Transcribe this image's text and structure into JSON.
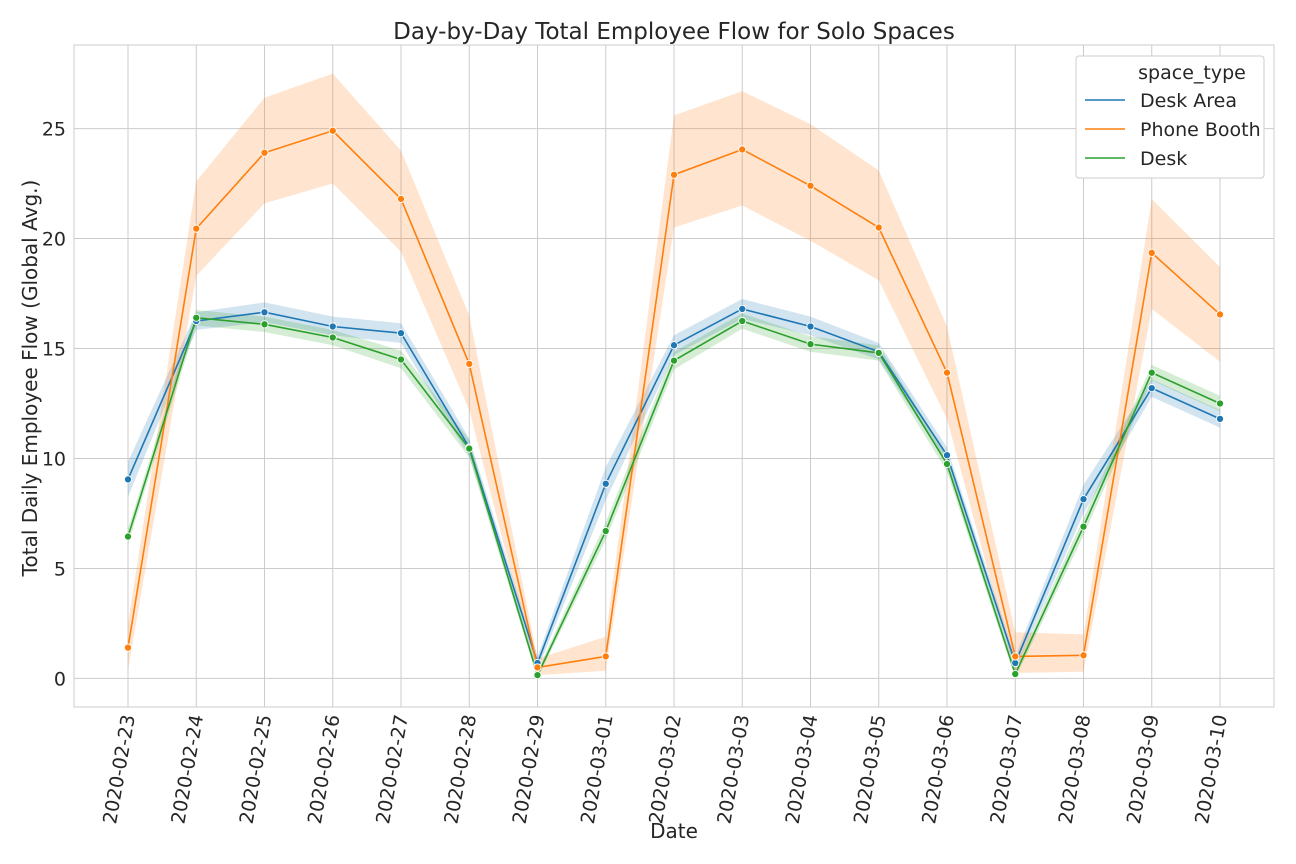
{
  "chart_data": {
    "type": "line",
    "title": "Day-by-Day Total Employee Flow for Solo Spaces",
    "xlabel": "Date",
    "ylabel": "Total Daily Employee Flow (Global Avg.)",
    "ylim": [
      -1.3,
      28.8
    ],
    "yticks": [
      0,
      5,
      10,
      15,
      20,
      25
    ],
    "grid": true,
    "legend_title": "space_type",
    "legend_position": "upper-right",
    "x": [
      "2020-02-23",
      "2020-02-24",
      "2020-02-25",
      "2020-02-26",
      "2020-02-27",
      "2020-02-28",
      "2020-02-29",
      "2020-03-01",
      "2020-03-02",
      "2020-03-03",
      "2020-03-04",
      "2020-03-05",
      "2020-03-06",
      "2020-03-07",
      "2020-03-08",
      "2020-03-09",
      "2020-03-10"
    ],
    "series": [
      {
        "name": "Desk Area",
        "color": "#1f77b4",
        "values": [
          9.05,
          16.25,
          16.65,
          16.0,
          15.7,
          10.5,
          0.7,
          8.85,
          15.15,
          16.8,
          16.0,
          14.85,
          10.15,
          0.7,
          8.15,
          13.2,
          11.8
        ],
        "ci_low": [
          8.25,
          15.85,
          16.2,
          15.6,
          15.25,
          10.1,
          0.4,
          8.1,
          14.7,
          16.35,
          15.6,
          14.5,
          9.8,
          0.4,
          7.5,
          12.8,
          11.4
        ],
        "ci_high": [
          9.85,
          16.65,
          17.1,
          16.45,
          16.15,
          10.9,
          1.0,
          9.6,
          15.6,
          17.25,
          16.45,
          15.25,
          10.5,
          1.0,
          8.8,
          13.6,
          12.2
        ]
      },
      {
        "name": "Phone Booth",
        "color": "#ff7f0e",
        "values": [
          1.4,
          20.45,
          23.9,
          24.9,
          21.8,
          14.3,
          0.5,
          1.0,
          22.9,
          24.05,
          22.4,
          20.5,
          13.9,
          1.0,
          1.05,
          19.35,
          16.55
        ],
        "ci_low": [
          0.4,
          18.3,
          21.6,
          22.5,
          19.4,
          12.2,
          0.15,
          0.35,
          20.5,
          21.5,
          19.9,
          18.1,
          11.8,
          0.25,
          0.3,
          16.8,
          14.4
        ],
        "ci_high": [
          2.5,
          22.6,
          26.4,
          27.5,
          24.0,
          16.5,
          0.9,
          1.9,
          25.6,
          26.7,
          25.2,
          23.1,
          16.0,
          2.1,
          2.0,
          21.8,
          18.7
        ]
      },
      {
        "name": "Desk",
        "color": "#2ca02c",
        "values": [
          6.45,
          16.4,
          16.1,
          15.5,
          14.5,
          10.45,
          0.15,
          6.7,
          14.45,
          16.25,
          15.2,
          14.8,
          9.75,
          0.2,
          6.9,
          13.9,
          12.5
        ],
        "ci_low": [
          6.1,
          16.05,
          15.75,
          15.15,
          14.1,
          10.05,
          0.0,
          6.3,
          14.05,
          15.9,
          14.85,
          14.45,
          9.4,
          0.0,
          6.5,
          13.55,
          12.15
        ],
        "ci_high": [
          6.8,
          16.75,
          16.45,
          15.85,
          14.9,
          10.85,
          0.35,
          7.1,
          14.85,
          16.6,
          15.55,
          15.15,
          10.1,
          0.45,
          7.3,
          14.25,
          12.85
        ]
      }
    ]
  }
}
